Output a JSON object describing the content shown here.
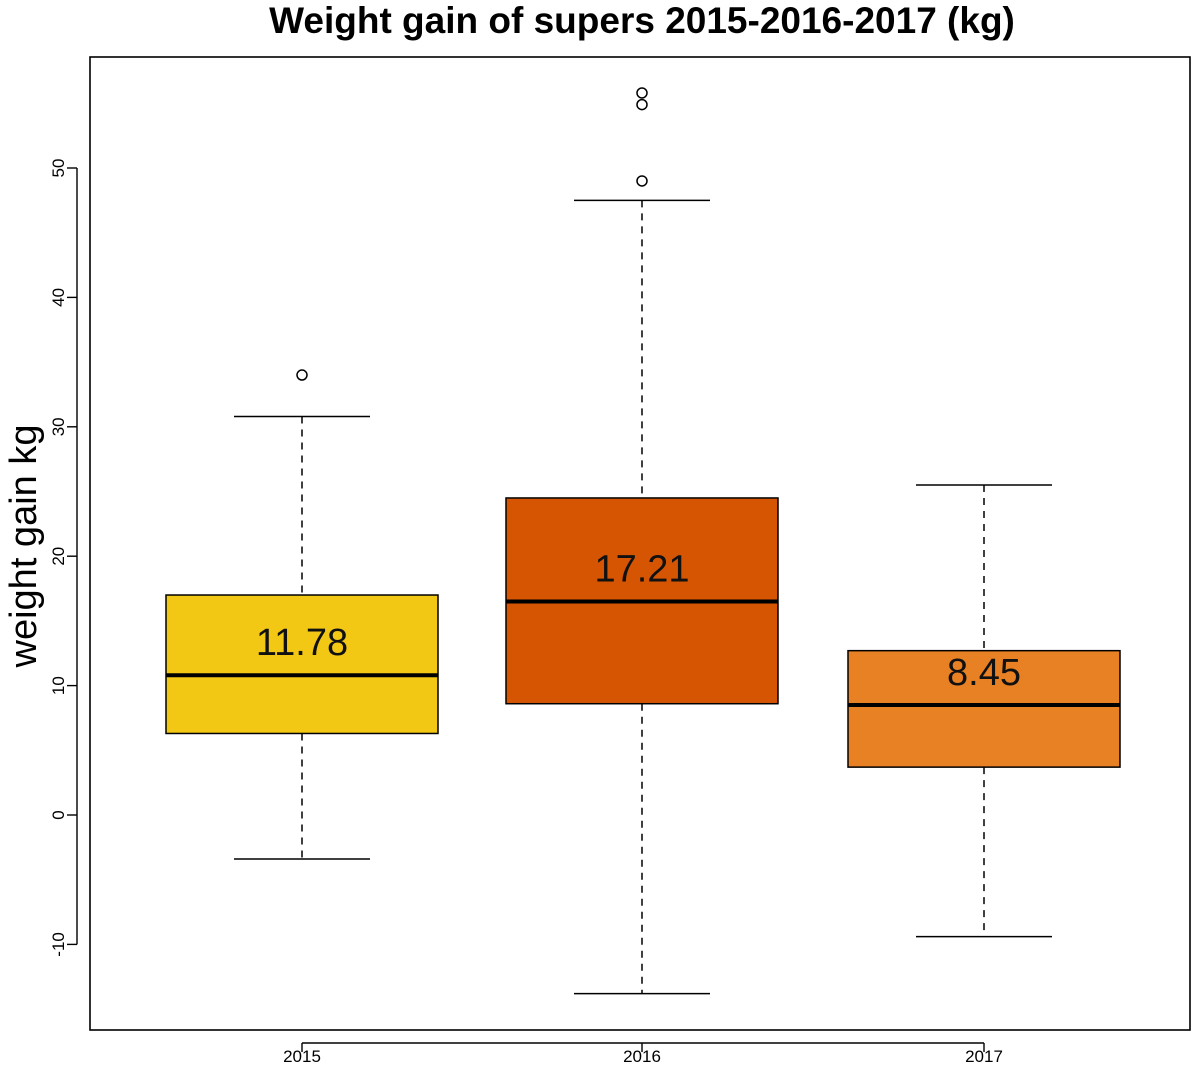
{
  "chart_data": {
    "type": "box",
    "title": "Weight gain of supers 2015-2016-2017 (kg)",
    "xlabel": "",
    "ylabel": "weight gain kg",
    "ylim": [
      -15.5,
      58.5
    ],
    "yticks": [
      -10,
      0,
      10,
      20,
      30,
      40,
      50
    ],
    "ytick_labels": [
      "-10",
      "0",
      "10",
      "20",
      "30",
      "40",
      "50"
    ],
    "categories": [
      "2015",
      "2016",
      "2017"
    ],
    "boxes": [
      {
        "category": "2015",
        "whisker_low": -3.4,
        "q1": 6.3,
        "median": 10.8,
        "q3": 17.0,
        "whisker_high": 30.8,
        "outliers": [
          34.0
        ],
        "color": "#F2C814",
        "label": "11.78"
      },
      {
        "category": "2016",
        "whisker_low": -13.8,
        "q1": 8.6,
        "median": 16.5,
        "q3": 24.5,
        "whisker_high": 47.5,
        "outliers": [
          49.0,
          54.9,
          55.8
        ],
        "color": "#D55502",
        "label": "17.21"
      },
      {
        "category": "2017",
        "whisker_low": -9.4,
        "q1": 3.7,
        "median": 8.5,
        "q3": 12.7,
        "whisker_high": 25.5,
        "outliers": [],
        "color": "#E88024",
        "label": "8.45"
      }
    ]
  }
}
